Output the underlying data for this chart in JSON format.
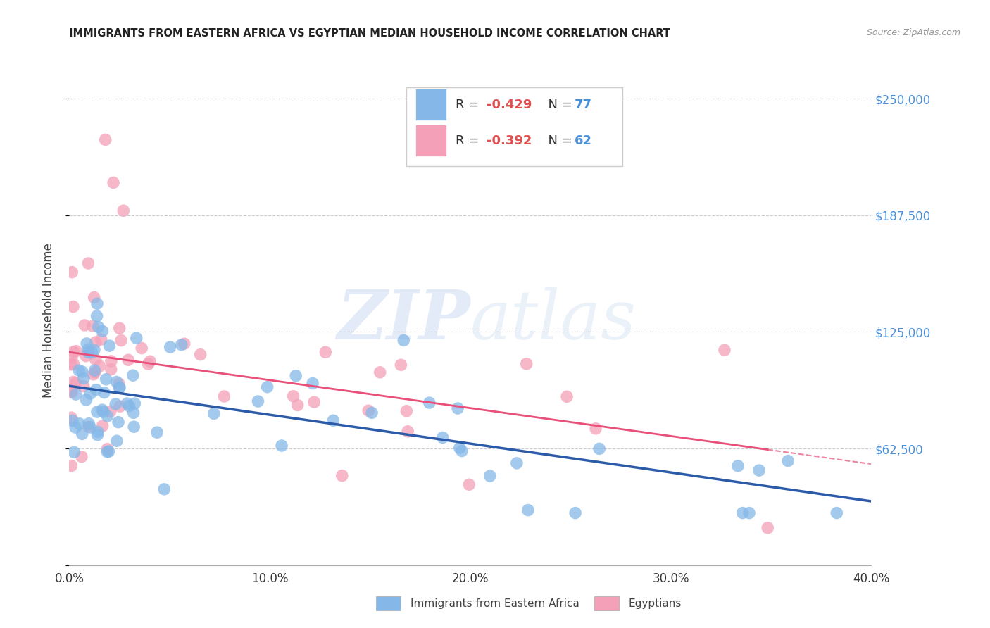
{
  "title": "IMMIGRANTS FROM EASTERN AFRICA VS EGYPTIAN MEDIAN HOUSEHOLD INCOME CORRELATION CHART",
  "source": "Source: ZipAtlas.com",
  "ylabel": "Median Household Income",
  "xlim": [
    0.0,
    0.4
  ],
  "ylim": [
    0,
    262500
  ],
  "yticks": [
    0,
    62500,
    125000,
    187500,
    250000
  ],
  "ytick_labels": [
    "",
    "$62,500",
    "$125,000",
    "$187,500",
    "$250,000"
  ],
  "xtick_labels": [
    "0.0%",
    "10.0%",
    "20.0%",
    "30.0%",
    "40.0%"
  ],
  "xticks": [
    0.0,
    0.1,
    0.2,
    0.3,
    0.4
  ],
  "legend_blue_r": "-0.429",
  "legend_blue_n": "77",
  "legend_pink_r": "-0.392",
  "legend_pink_n": "62",
  "blue_color": "#85B8E8",
  "pink_color": "#F4A0B8",
  "blue_line_color": "#2B5BA8",
  "pink_line_color": "#E8507A",
  "watermark_zip": "ZIP",
  "watermark_atlas": "atlas",
  "background_color": "#FFFFFF",
  "grid_color": "#CCCCCC",
  "right_label_color": "#4A90D9",
  "legend_label_r": "R = ",
  "legend_label_n": "  N = ",
  "bottom_label1": "Immigrants from Eastern Africa",
  "bottom_label2": "Egyptians"
}
